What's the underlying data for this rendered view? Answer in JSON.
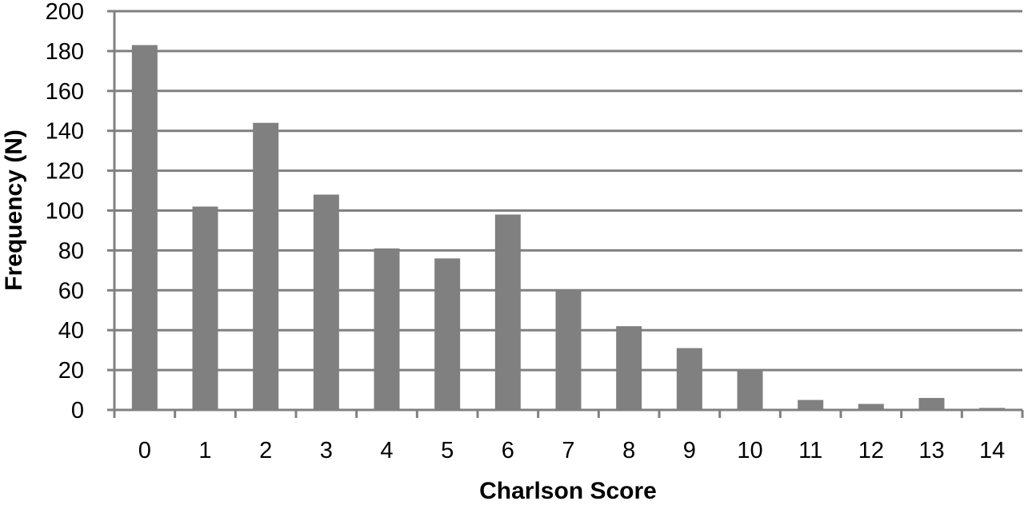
{
  "chart_data": {
    "type": "bar",
    "title": "",
    "xlabel": "Charlson Score",
    "ylabel": "Frequency  (N)",
    "categories": [
      "0",
      "1",
      "2",
      "3",
      "4",
      "5",
      "6",
      "7",
      "8",
      "9",
      "10",
      "11",
      "12",
      "13",
      "14"
    ],
    "values": [
      183,
      102,
      144,
      108,
      81,
      76,
      98,
      60,
      42,
      31,
      20,
      5,
      3,
      6,
      1
    ],
    "ylim": [
      0,
      200
    ],
    "yticks": [
      0,
      20,
      40,
      60,
      80,
      100,
      120,
      140,
      160,
      180,
      200
    ],
    "grid": true,
    "bar_color": "#808080",
    "grid_color": "#808080"
  }
}
